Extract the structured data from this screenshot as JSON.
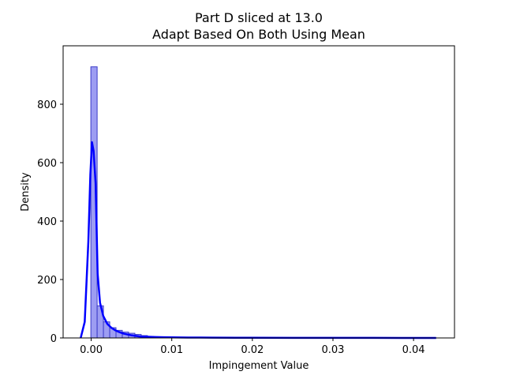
{
  "chart_data": {
    "type": "histogram",
    "title_line1": "Part D sliced at 13.0",
    "title_line2": "Adapt Based On Both   Using Mean",
    "xlabel": "Impingement Value",
    "ylabel": "Density",
    "xlim": [
      -0.00348,
      0.04508
    ],
    "ylim": [
      0,
      1000
    ],
    "x_ticks": [
      0.0,
      0.01,
      0.02,
      0.03,
      0.04
    ],
    "x_tick_labels": [
      "0.00",
      "0.01",
      "0.02",
      "0.03",
      "0.04"
    ],
    "y_ticks": [
      0,
      200,
      400,
      600,
      800
    ],
    "y_tick_labels": [
      "0",
      "200",
      "400",
      "600",
      "800"
    ],
    "bin_start": -4e-05,
    "bin_width": 0.00078,
    "bar_heights": [
      928,
      110,
      55,
      35,
      26,
      20,
      16,
      12,
      8,
      5,
      3,
      2,
      2,
      2,
      2,
      1.5,
      1.5,
      1.5,
      1,
      1,
      1,
      1,
      1,
      1,
      1,
      1,
      1,
      1,
      1,
      1,
      1,
      1,
      1,
      1,
      1,
      1,
      1,
      1,
      1,
      1,
      1,
      1,
      1,
      1,
      1,
      1,
      1,
      1,
      1,
      1,
      1,
      1,
      1,
      1
    ],
    "kde_curve": {
      "x": [
        -0.0013,
        -0.0008,
        -0.00035,
        -0.0001,
        0.0001,
        0.0003,
        0.00055,
        0.0008,
        0.0011,
        0.0015,
        0.002,
        0.0025,
        0.003,
        0.0035,
        0.004,
        0.0045,
        0.005,
        0.006,
        0.007,
        0.008,
        0.009,
        0.01,
        0.012,
        0.015,
        0.018,
        0.02,
        0.025,
        0.03,
        0.035,
        0.04,
        0.0428
      ],
      "y": [
        0,
        55,
        330,
        560,
        670,
        640,
        530,
        220,
        120,
        75,
        48,
        35,
        26,
        20,
        15,
        12,
        9,
        5,
        4,
        3,
        2.5,
        2,
        1.5,
        1,
        0.8,
        0.6,
        0.4,
        0.3,
        0.2,
        0.1,
        0
      ]
    },
    "bar_color": "#8c8cf0",
    "bar_edge_color": "#3c3cc8",
    "kde_color": "#0000ff"
  }
}
